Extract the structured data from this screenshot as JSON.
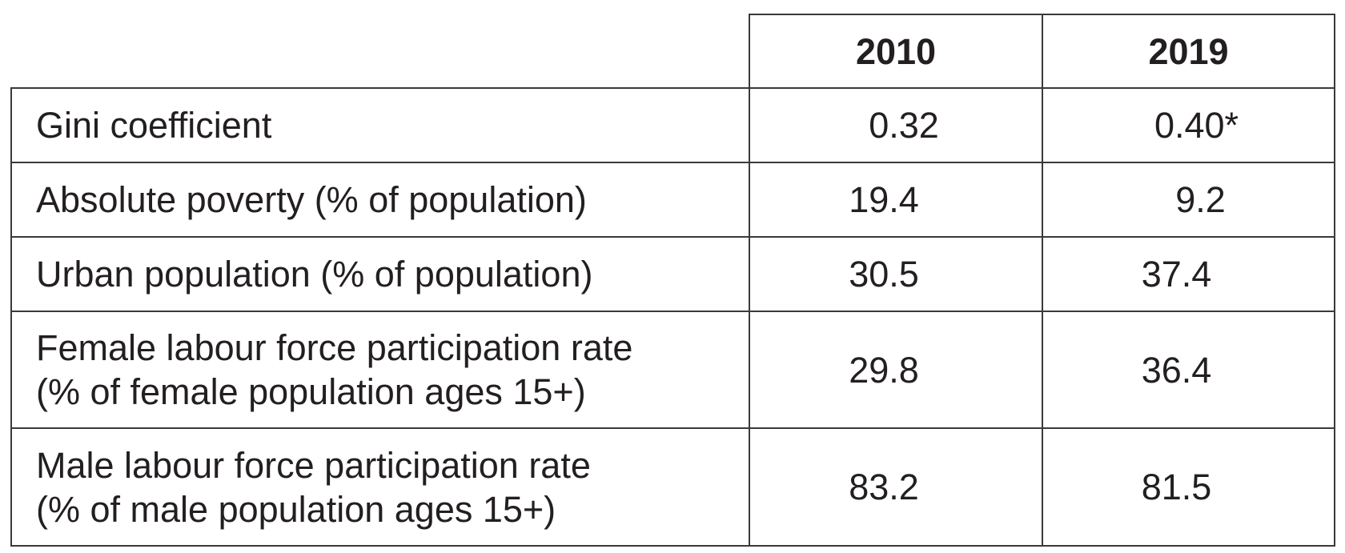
{
  "table": {
    "columns": [
      "2010",
      "2019"
    ],
    "rows": [
      {
        "label": "Gini coefficient",
        "values": [
          "0.32",
          "0.40*"
        ]
      },
      {
        "label": "Absolute poverty (% of population)",
        "values": [
          "19.4",
          "9.2"
        ]
      },
      {
        "label": "Urban population (% of population)",
        "values": [
          "30.5",
          "37.4"
        ]
      },
      {
        "label": "Female labour force participation rate\n(% of female population ages 15+)",
        "values": [
          "29.8",
          "36.4"
        ]
      },
      {
        "label": "Male labour force participation rate\n(% of male population ages 15+)",
        "values": [
          "83.2",
          "81.5"
        ]
      }
    ]
  }
}
